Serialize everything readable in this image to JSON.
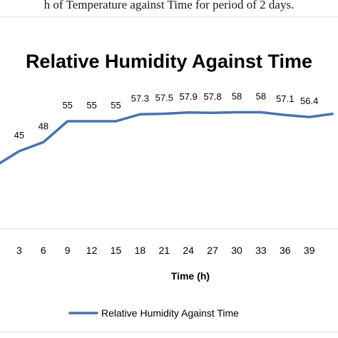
{
  "caption": "h of Temperature against Time for period of 2 days.",
  "chart_data": {
    "type": "line",
    "title": "Relative Humidity Against Time",
    "xlabel": "Time (h)",
    "ylabel": "",
    "x": [
      0,
      3,
      6,
      9,
      12,
      15,
      18,
      21,
      24,
      27,
      30,
      33,
      36,
      39,
      42
    ],
    "x_tick_labels": [
      "",
      "3",
      "6",
      "9",
      "12",
      "15",
      "18",
      "21",
      "24",
      "27",
      "30",
      "33",
      "36",
      "39",
      ""
    ],
    "series": [
      {
        "name": "Relative Humidity Against Time",
        "values": [
          40,
          45,
          48,
          55,
          55,
          55,
          57.3,
          57.5,
          57.9,
          57.8,
          58,
          58,
          57.1,
          56.4,
          57.5
        ],
        "data_labels": [
          "",
          "45",
          "48",
          "55",
          "55",
          "55",
          "57.3",
          "57.5",
          "57.9",
          "57.8",
          "58",
          "58",
          "57.1",
          "56.4",
          ""
        ],
        "color": "#4a72b0"
      }
    ],
    "ylim": [
      0,
      70
    ],
    "grid": false,
    "legend": "bottom"
  }
}
